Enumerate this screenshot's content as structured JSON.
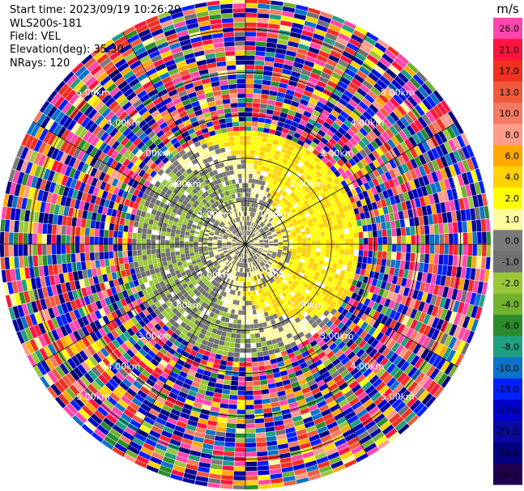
{
  "header": {
    "start_time": "Start time: 2023/09/19 10:26:29",
    "instrument": "WLS200s-181",
    "field": "Field: VEL",
    "elevation": "Elevation(deg): 35.30",
    "nrays": "NRays: 120"
  },
  "colorbar": {
    "unit": "m/s",
    "ticks": [
      "26.0",
      "21.0",
      "17.0",
      "13.0",
      "10.0",
      "8.0",
      "6.0",
      "4.0",
      "2.0",
      "1.0",
      "0.0",
      "-1.0",
      "-2.0",
      "-4.0",
      "-6.0",
      "-8.0",
      "-10.0",
      "-13.0",
      "-17.0",
      "-21.0",
      "-26.0",
      "-30.0"
    ],
    "colors": [
      "#ff46ac",
      "#ff1440",
      "#f03020",
      "#f05a3c",
      "#f47a64",
      "#ff9c8a",
      "#ffa800",
      "#ffd200",
      "#ffff00",
      "#fffaa0",
      "#7a7a7a",
      "#707070",
      "#9bc83a",
      "#71b22e",
      "#2c8c2c",
      "#1fa080",
      "#0c72c8",
      "#0020ff",
      "#0000cc",
      "#0a0aa0",
      "#000080",
      "#200050"
    ]
  },
  "chart_data": {
    "type": "heatmap",
    "projection": "polar-ppi",
    "nrays": 120,
    "range_rings_km": [
      1.0,
      2.0,
      3.0,
      4.0,
      5.0
    ],
    "ring_labels": [
      "1.00km",
      "2.00km",
      "3.00km",
      "4.00km",
      "5.00km"
    ],
    "max_range_km": 5.7,
    "field": "VEL",
    "unit": "m/s",
    "vmin": -30.0,
    "vmax": 26.0,
    "spokes_deg": [
      0,
      30,
      60,
      90,
      120,
      150,
      180,
      210,
      240,
      270,
      300,
      330
    ],
    "velocity_structure": [
      {
        "range_km": [
          0.0,
          0.7
        ],
        "description_values_ms": [
          -0.5,
          0.5
        ]
      },
      {
        "range_km": [
          0.7,
          2.6
        ],
        "description_values_ms": [
          -3.0,
          3.0
        ]
      },
      {
        "range_km": [
          2.6,
          5.7
        ],
        "description_values_ms": [
          -30.0,
          26.0
        ]
      }
    ]
  }
}
